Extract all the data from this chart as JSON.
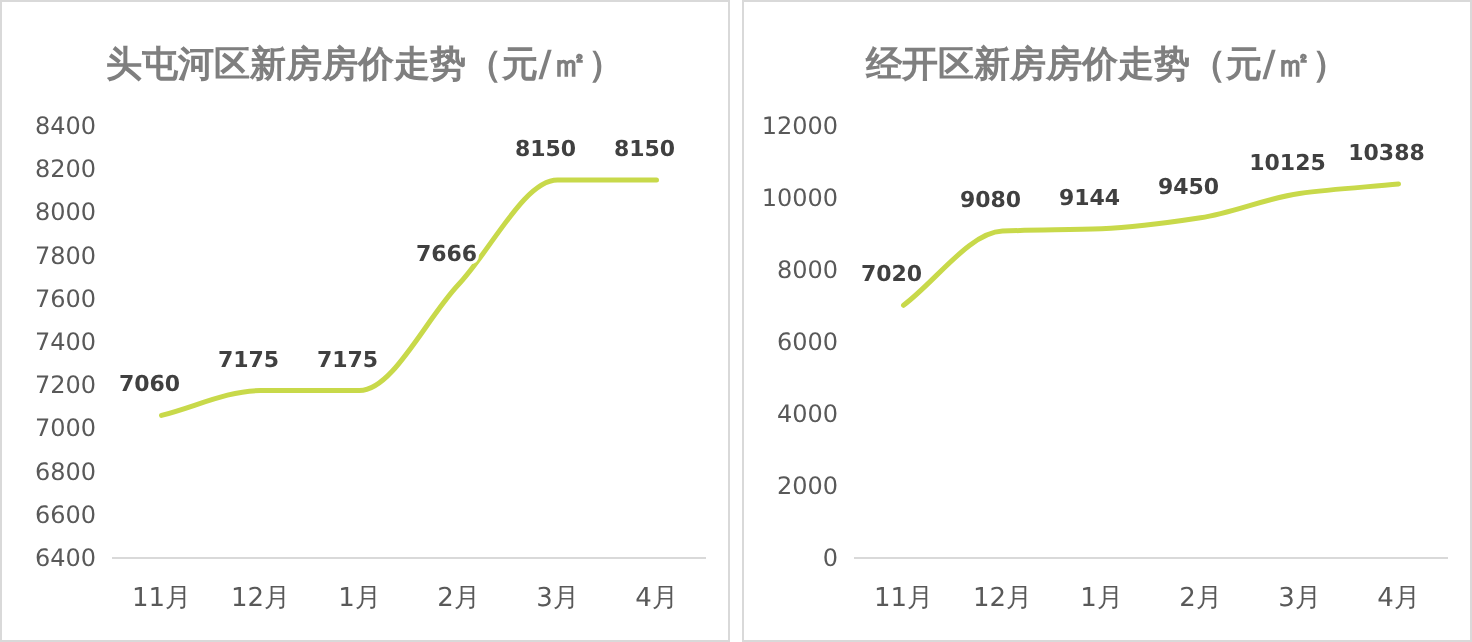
{
  "chart_data": [
    {
      "type": "line",
      "title": "头屯河区新房房价走势（元/㎡）",
      "categories": [
        "11月",
        "12月",
        "1月",
        "2月",
        "3月",
        "4月"
      ],
      "series": [
        {
          "color": "#c8d94a",
          "values": [
            7060,
            7175,
            7175,
            7666,
            8150,
            8150
          ]
        }
      ],
      "ylim": [
        6400,
        8400
      ],
      "yticks": [
        6400,
        6600,
        6800,
        7000,
        7200,
        7400,
        7600,
        7800,
        8000,
        8200,
        8400
      ],
      "data_labels": true
    },
    {
      "type": "line",
      "title": "经开区新房房价走势（元/㎡）",
      "categories": [
        "11月",
        "12月",
        "1月",
        "2月",
        "3月",
        "4月"
      ],
      "series": [
        {
          "color": "#c8d94a",
          "values": [
            7020,
            9080,
            9144,
            9450,
            10125,
            10388
          ]
        }
      ],
      "ylim": [
        0,
        12000
      ],
      "yticks": [
        0,
        2000,
        4000,
        6000,
        8000,
        10000,
        12000
      ],
      "data_labels": true
    }
  ]
}
